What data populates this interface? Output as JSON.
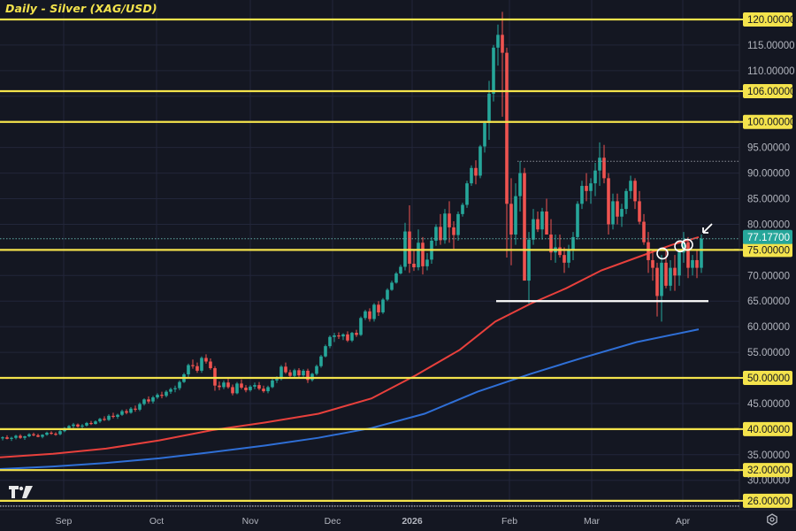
{
  "header": {
    "title": "Daily - Silver (XAG/USD)"
  },
  "colors": {
    "background": "#141722",
    "grid": "#22263a",
    "up": "#26a69a",
    "down": "#ef5350",
    "horizontal_line": "#f4e34c",
    "support_line": "#ffffff",
    "ma_red": "#e8403c",
    "ma_blue": "#2f6fd6",
    "price_tag": "#26a69a",
    "axis_text": "#b2b5be"
  },
  "price_axis": {
    "ticks": [
      "120.00000",
      "115.00000",
      "110.00000",
      "106.00000",
      "100.00000",
      "95.00000",
      "90.00000",
      "85.00000",
      "80.00000",
      "75.00000",
      "70.00000",
      "65.00000",
      "60.00000",
      "55.00000",
      "50.00000",
      "45.00000",
      "40.00000",
      "35.00000",
      "30.00000",
      "26.00000"
    ],
    "current_price_label": "77.17700"
  },
  "time_axis": {
    "labels": [
      "Sep",
      "Oct",
      "Nov",
      "Dec",
      "2026",
      "Feb",
      "Mar",
      "Apr"
    ]
  },
  "settings_icon": "gear-icon",
  "chart_data": {
    "type": "candlestick",
    "title": "Daily - Silver (XAG/USD)",
    "xlabel": "",
    "ylabel": "",
    "ylim": [
      24,
      122
    ],
    "x_ticks": [
      {
        "label": "Sep",
        "x": 72
      },
      {
        "label": "Oct",
        "x": 177
      },
      {
        "label": "Nov",
        "x": 283
      },
      {
        "label": "Dec",
        "x": 376
      },
      {
        "label": "2026",
        "x": 466
      },
      {
        "label": "Feb",
        "x": 576
      },
      {
        "label": "Mar",
        "x": 669
      },
      {
        "label": "Apr",
        "x": 772
      }
    ],
    "horizontal_levels": [
      120,
      106,
      100,
      75,
      50,
      40,
      32,
      26
    ],
    "support_line": {
      "value": 65,
      "x_start": 561,
      "x_end": 801
    },
    "dotted_levels": [
      {
        "value": 92.3,
        "x_start": 585,
        "x_end": 835
      },
      {
        "value": 77.177,
        "x_start": 0,
        "x_end": 835
      }
    ],
    "current_price": 77.177,
    "moving_averages": [
      {
        "name": "MA (red)",
        "color": "#e8403c",
        "points": [
          [
            0,
            34.5
          ],
          [
            60,
            35.2
          ],
          [
            120,
            36.2
          ],
          [
            180,
            37.8
          ],
          [
            240,
            39.8
          ],
          [
            300,
            41.3
          ],
          [
            360,
            43
          ],
          [
            420,
            46
          ],
          [
            470,
            50.5
          ],
          [
            520,
            55.5
          ],
          [
            560,
            61
          ],
          [
            600,
            64.5
          ],
          [
            640,
            67.5
          ],
          [
            680,
            71
          ],
          [
            720,
            73.5
          ],
          [
            760,
            76
          ],
          [
            790,
            77.5
          ]
        ]
      },
      {
        "name": "MA (blue)",
        "color": "#2f6fd6",
        "points": [
          [
            0,
            32.2
          ],
          [
            60,
            32.7
          ],
          [
            120,
            33.4
          ],
          [
            180,
            34.3
          ],
          [
            240,
            35.5
          ],
          [
            300,
            36.8
          ],
          [
            360,
            38.3
          ],
          [
            420,
            40.2
          ],
          [
            480,
            43
          ],
          [
            540,
            47.3
          ],
          [
            600,
            50.8
          ],
          [
            660,
            54
          ],
          [
            720,
            57
          ],
          [
            790,
            59.5
          ]
        ]
      }
    ],
    "candles": [
      [
        3,
        38.2,
        38.6,
        37.8,
        38.4
      ],
      [
        8,
        38.4,
        38.8,
        38,
        38.1
      ],
      [
        13,
        38.1,
        38.5,
        37.7,
        38.3
      ],
      [
        18,
        38.3,
        38.9,
        38,
        38.7
      ],
      [
        23,
        38.7,
        39.0,
        38.1,
        38.3
      ],
      [
        28,
        38.3,
        38.7,
        37.9,
        38.6
      ],
      [
        33,
        38.6,
        39.2,
        38.4,
        39.0
      ],
      [
        38,
        39.0,
        39.3,
        38.6,
        38.8
      ],
      [
        43,
        38.8,
        39.1,
        38.4,
        38.5
      ],
      [
        48,
        38.5,
        39.0,
        38.2,
        38.9
      ],
      [
        53,
        38.9,
        39.5,
        38.7,
        39.3
      ],
      [
        58,
        39.3,
        39.6,
        38.9,
        39.1
      ],
      [
        63,
        39.1,
        39.4,
        38.7,
        39.0
      ],
      [
        68,
        39.0,
        39.8,
        38.8,
        39.6
      ],
      [
        73,
        39.6,
        40.4,
        39.4,
        40.2
      ],
      [
        78,
        40.2,
        40.8,
        39.9,
        40.6
      ],
      [
        83,
        40.6,
        41.2,
        40.2,
        40.9
      ],
      [
        88,
        40.9,
        41.1,
        40.3,
        40.5
      ],
      [
        93,
        40.5,
        41.0,
        40.0,
        40.7
      ],
      [
        98,
        40.7,
        41.4,
        40.5,
        41.2
      ],
      [
        103,
        41.2,
        41.6,
        40.8,
        41.0
      ],
      [
        108,
        41.0,
        41.7,
        40.9,
        41.5
      ],
      [
        113,
        41.5,
        42.2,
        41.2,
        42.0
      ],
      [
        118,
        42.0,
        42.5,
        41.6,
        41.8
      ],
      [
        123,
        41.8,
        42.9,
        41.6,
        42.6
      ],
      [
        128,
        42.6,
        43.2,
        42.1,
        42.4
      ],
      [
        133,
        42.4,
        43.0,
        42.0,
        42.8
      ],
      [
        138,
        42.8,
        43.8,
        42.6,
        43.5
      ],
      [
        143,
        43.5,
        43.9,
        42.9,
        43.2
      ],
      [
        148,
        43.2,
        44.3,
        43.0,
        44.0
      ],
      [
        153,
        44.0,
        44.6,
        43.4,
        43.8
      ],
      [
        158,
        43.8,
        45.2,
        43.5,
        44.9
      ],
      [
        163,
        44.9,
        46.0,
        44.6,
        45.8
      ],
      [
        168,
        45.8,
        46.4,
        45.0,
        45.4
      ],
      [
        173,
        45.4,
        46.5,
        45.0,
        46.2
      ],
      [
        178,
        46.2,
        47.0,
        45.9,
        46.7
      ],
      [
        183,
        46.7,
        47.3,
        46.0,
        46.5
      ],
      [
        188,
        46.5,
        47.6,
        46.2,
        47.3
      ],
      [
        193,
        47.3,
        48.1,
        46.9,
        47.8
      ],
      [
        198,
        47.8,
        48.5,
        47.2,
        48.0
      ],
      [
        203,
        48.0,
        49.5,
        47.6,
        49.2
      ],
      [
        208,
        49.2,
        51.0,
        49.0,
        50.7
      ],
      [
        213,
        50.7,
        52.8,
        50.2,
        52.5
      ],
      [
        218,
        52.5,
        53.6,
        51.8,
        52.3
      ],
      [
        223,
        52.3,
        53.0,
        51.0,
        51.4
      ],
      [
        228,
        51.4,
        54.2,
        51.0,
        53.9
      ],
      [
        233,
        53.9,
        54.6,
        52.8,
        53.2
      ],
      [
        238,
        53.2,
        53.8,
        51.6,
        51.9
      ],
      [
        243,
        51.9,
        52.3,
        47.5,
        48.5
      ],
      [
        248,
        48.5,
        49.3,
        47.6,
        48.2
      ],
      [
        253,
        48.2,
        49.5,
        47.8,
        49.1
      ],
      [
        258,
        49.1,
        49.8,
        47.9,
        48.2
      ],
      [
        263,
        48.2,
        48.7,
        46.6,
        47.0
      ],
      [
        268,
        47.0,
        49.2,
        46.8,
        48.9
      ],
      [
        273,
        48.9,
        49.7,
        47.8,
        48.1
      ],
      [
        278,
        48.1,
        48.6,
        47.2,
        47.6
      ],
      [
        283,
        47.6,
        48.6,
        47.3,
        48.3
      ],
      [
        288,
        48.3,
        49.1,
        47.8,
        48.6
      ],
      [
        293,
        48.6,
        49.2,
        47.6,
        47.9
      ],
      [
        298,
        47.9,
        48.5,
        47.1,
        47.4
      ],
      [
        303,
        47.4,
        48.5,
        47.0,
        48.2
      ],
      [
        308,
        48.2,
        49.8,
        48.0,
        49.5
      ],
      [
        313,
        49.5,
        50.3,
        49.0,
        49.8
      ],
      [
        318,
        49.8,
        52.5,
        49.5,
        52.2
      ],
      [
        323,
        52.2,
        53.0,
        50.8,
        51.1
      ],
      [
        328,
        51.1,
        51.6,
        49.9,
        50.4
      ],
      [
        333,
        50.4,
        51.8,
        50.1,
        51.5
      ],
      [
        338,
        51.5,
        51.9,
        50.2,
        50.5
      ],
      [
        343,
        50.5,
        51.7,
        50.2,
        51.4
      ],
      [
        348,
        51.4,
        51.8,
        49.0,
        49.6
      ],
      [
        353,
        49.6,
        51.0,
        49.3,
        50.8
      ],
      [
        358,
        50.8,
        52.6,
        50.5,
        52.3
      ],
      [
        363,
        52.3,
        54.5,
        52.0,
        54.2
      ],
      [
        368,
        54.2,
        56.5,
        54.0,
        56.2
      ],
      [
        373,
        56.2,
        58.3,
        55.8,
        58.0
      ],
      [
        378,
        58.0,
        58.8,
        57.0,
        58.3
      ],
      [
        383,
        58.3,
        58.9,
        57.6,
        58.1
      ],
      [
        388,
        58.1,
        58.7,
        57.4,
        58.5
      ],
      [
        393,
        58.5,
        59.1,
        57.0,
        57.3
      ],
      [
        398,
        57.3,
        59.0,
        57.0,
        58.8
      ],
      [
        403,
        58.8,
        59.4,
        58.0,
        58.4
      ],
      [
        408,
        58.4,
        62.0,
        58.2,
        61.7
      ],
      [
        413,
        61.7,
        63.3,
        61.3,
        63.0
      ],
      [
        418,
        63.0,
        63.6,
        61.0,
        61.5
      ],
      [
        423,
        61.5,
        64.6,
        61.0,
        64.3
      ],
      [
        428,
        64.3,
        65.0,
        62.1,
        62.8
      ],
      [
        433,
        62.8,
        65.6,
        62.5,
        65.3
      ],
      [
        438,
        65.3,
        67.5,
        65.0,
        67.2
      ],
      [
        443,
        67.2,
        69.0,
        67.0,
        68.6
      ],
      [
        448,
        68.6,
        70.7,
        68.4,
        70.4
      ],
      [
        453,
        70.4,
        72.1,
        70.2,
        71.7
      ],
      [
        458,
        71.7,
        80.3,
        71.0,
        78.6
      ],
      [
        463,
        78.6,
        83.7,
        70.5,
        72.3
      ],
      [
        468,
        72.3,
        74.8,
        70.9,
        71.6
      ],
      [
        473,
        71.6,
        79.0,
        71.0,
        76.4
      ],
      [
        478,
        76.4,
        77.5,
        70.2,
        71.8
      ],
      [
        483,
        71.8,
        74.4,
        71.0,
        73.1
      ],
      [
        488,
        73.1,
        77.5,
        72.3,
        76.8
      ],
      [
        493,
        76.8,
        80.0,
        75.8,
        79.5
      ],
      [
        498,
        79.5,
        82.0,
        76.0,
        76.9
      ],
      [
        503,
        76.9,
        83.0,
        76.2,
        82.1
      ],
      [
        508,
        82.1,
        84.5,
        76.4,
        79.4
      ],
      [
        513,
        79.4,
        80.6,
        75.2,
        77.9
      ],
      [
        518,
        77.9,
        82.5,
        76.8,
        82.0
      ],
      [
        523,
        82.0,
        84.2,
        81.5,
        83.8
      ],
      [
        528,
        83.8,
        88.5,
        83.2,
        88.0
      ],
      [
        533,
        88.0,
        91.5,
        87.5,
        91.0
      ],
      [
        538,
        91.0,
        92.5,
        87.8,
        89.5
      ],
      [
        543,
        89.5,
        95.5,
        89.0,
        95.2
      ],
      [
        548,
        95.2,
        100.2,
        94.0,
        99.8
      ],
      [
        553,
        99.8,
        108.0,
        96.5,
        105.5
      ],
      [
        558,
        105.5,
        115.0,
        104.0,
        114.5
      ],
      [
        563,
        114.5,
        119.0,
        111.0,
        117.0
      ],
      [
        568,
        117.0,
        121.5,
        101.0,
        113.5
      ],
      [
        573,
        113.5,
        114.5,
        73.5,
        84.0
      ],
      [
        578,
        84.0,
        89.0,
        72.0,
        78.0
      ],
      [
        583,
        78.0,
        88.0,
        76.0,
        85.5
      ],
      [
        588,
        85.5,
        92.3,
        82.5,
        90.0
      ],
      [
        593,
        90.0,
        91.0,
        70.0,
        69.0
      ],
      [
        598,
        69.0,
        78.5,
        64.5,
        77.0
      ],
      [
        603,
        77.0,
        83.0,
        76.0,
        81.0
      ],
      [
        608,
        81.0,
        82.5,
        78.5,
        79.0
      ],
      [
        613,
        79.0,
        83.2,
        77.0,
        82.5
      ],
      [
        618,
        82.5,
        85.0,
        79.0,
        78.0
      ],
      [
        623,
        78.0,
        81.0,
        73.0,
        74.5
      ],
      [
        628,
        74.5,
        78.0,
        72.5,
        75.5
      ],
      [
        633,
        75.5,
        78.0,
        73.5,
        74.0
      ],
      [
        638,
        74.0,
        75.5,
        70.5,
        72.5
      ],
      [
        643,
        72.5,
        76.0,
        71.5,
        75.0
      ],
      [
        648,
        75.0,
        78.5,
        73.0,
        77.5
      ],
      [
        653,
        77.5,
        84.5,
        77.0,
        84.0
      ],
      [
        658,
        84.0,
        88.5,
        83.0,
        87.5
      ],
      [
        663,
        87.5,
        90.0,
        84.5,
        86.5
      ],
      [
        668,
        86.5,
        89.0,
        84.0,
        88.0
      ],
      [
        673,
        88.0,
        92.0,
        85.5,
        90.5
      ],
      [
        678,
        90.5,
        96.0,
        87.5,
        93.0
      ],
      [
        683,
        93.0,
        95.5,
        88.0,
        89.0
      ],
      [
        688,
        89.0,
        90.0,
        78.0,
        80.0
      ],
      [
        693,
        80.0,
        86.0,
        79.0,
        84.5
      ],
      [
        698,
        84.5,
        86.0,
        80.0,
        81.5
      ],
      [
        703,
        81.5,
        84.0,
        79.5,
        83.0
      ],
      [
        708,
        83.0,
        87.0,
        82.0,
        86.5
      ],
      [
        713,
        86.5,
        89.5,
        85.0,
        88.5
      ],
      [
        718,
        88.5,
        89.0,
        83.0,
        84.5
      ],
      [
        723,
        84.5,
        86.5,
        80.0,
        80.5
      ],
      [
        728,
        80.5,
        82.0,
        76.0,
        76.5
      ],
      [
        733,
        76.5,
        78.5,
        70.5,
        73.0
      ],
      [
        738,
        73.0,
        75.0,
        69.0,
        71.5
      ],
      [
        743,
        71.5,
        72.5,
        62.0,
        66.0
      ],
      [
        748,
        66.0,
        74.0,
        61.0,
        72.5
      ],
      [
        753,
        72.5,
        75.0,
        67.5,
        68.0
      ],
      [
        758,
        68.0,
        73.0,
        67.0,
        71.5
      ],
      [
        763,
        71.5,
        74.0,
        67.0,
        70.0
      ],
      [
        768,
        70.0,
        75.0,
        68.0,
        74.5
      ],
      [
        773,
        74.5,
        78.5,
        72.5,
        76.5
      ],
      [
        778,
        76.5,
        77.5,
        69.5,
        71.5
      ],
      [
        783,
        71.5,
        74.0,
        70.0,
        73.0
      ],
      [
        788,
        73.0,
        75.0,
        69.5,
        71.5
      ],
      [
        793,
        71.5,
        78.0,
        70.5,
        77.177
      ]
    ],
    "annotations": [
      {
        "type": "circle",
        "x": 749,
        "value": 74.3,
        "r": 6
      },
      {
        "type": "circle",
        "x": 769,
        "value": 75.7,
        "r": 6
      },
      {
        "type": "circle",
        "x": 777,
        "value": 76.0,
        "r": 6
      },
      {
        "type": "arrow",
        "x1": 805,
        "y1": 253,
        "x2": 795,
        "y2": 263
      }
    ]
  }
}
